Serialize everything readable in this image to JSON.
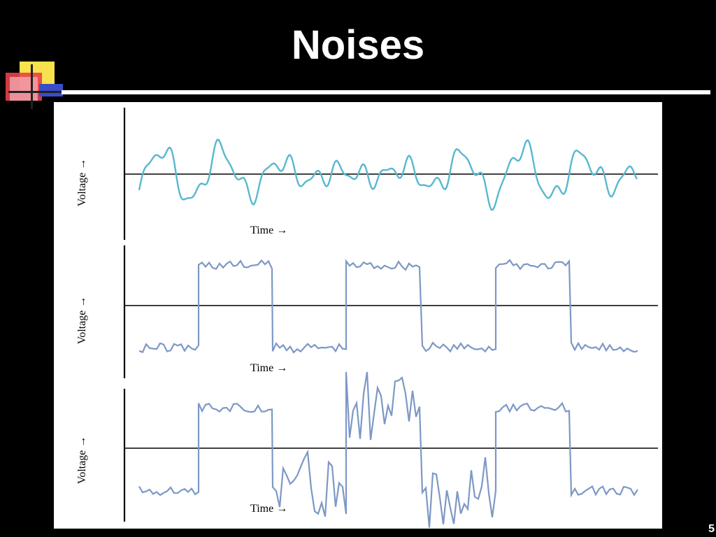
{
  "slide": {
    "title": "Noises",
    "page_number": "5"
  },
  "logo": {
    "colors": {
      "yellow": "#f7e14c",
      "red": "#e8414a",
      "pink": "#f4a6b0",
      "blue": "#3a4dc9"
    }
  },
  "figure": {
    "background_color": "#ffffff",
    "trace_color_analog": "#58b8cf",
    "trace_color_digital": "#7d98c6",
    "axis_color": "#000000",
    "panels": [
      {
        "id": "analog-noise",
        "y_label": "Voltage",
        "x_label": "Time",
        "arrow": "→"
      },
      {
        "id": "digital-low-noise",
        "y_label": "Voltage",
        "x_label": "Time",
        "arrow": "→"
      },
      {
        "id": "digital-high-noise",
        "y_label": "Voltage",
        "x_label": "Time",
        "arrow": "→"
      }
    ]
  }
}
